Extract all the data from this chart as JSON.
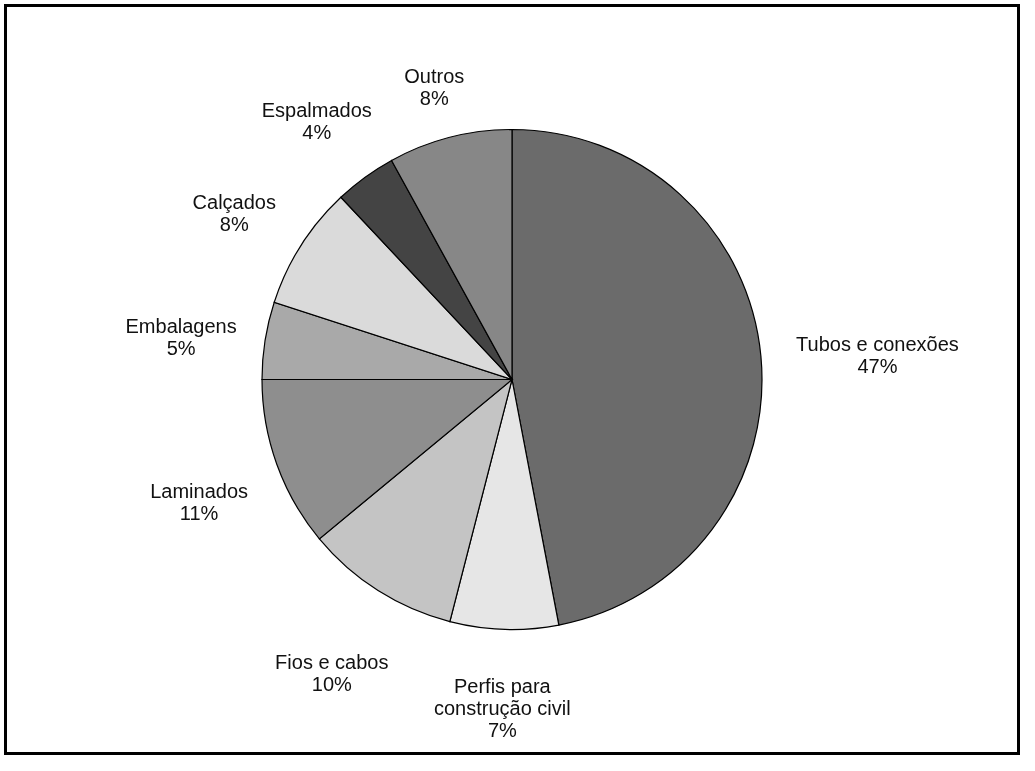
{
  "chart_data": {
    "type": "pie",
    "categories": [
      "Tubos e conexões",
      "Perfis para construção civil",
      "Fios e cabos",
      "Laminados",
      "Embalagens",
      "Calçados",
      "Espalmados",
      "Outros"
    ],
    "values": [
      47,
      7,
      10,
      11,
      5,
      8,
      4,
      8
    ],
    "value_labels": [
      "47%",
      "7%",
      "10%",
      "11%",
      "5%",
      "8%",
      "4%",
      "8%"
    ],
    "colors": [
      "#6b6b6b",
      "#e6e6e6",
      "#c4c4c4",
      "#8e8e8e",
      "#a9a9a9",
      "#dadada",
      "#444444",
      "#878787"
    ],
    "legend": false
  }
}
